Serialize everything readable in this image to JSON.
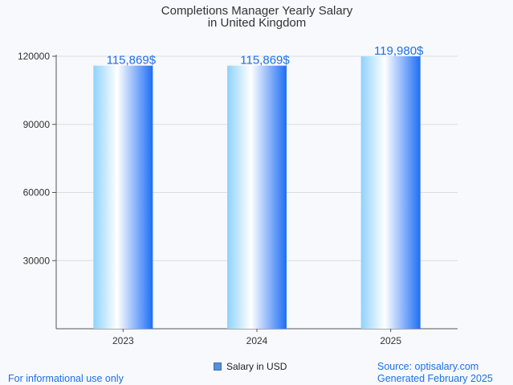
{
  "chart_data": {
    "type": "bar",
    "title_line1": "Completions Manager Yearly Salary",
    "title_line2": "in United Kingdom",
    "categories": [
      "2023",
      "2024",
      "2025"
    ],
    "series": [
      {
        "name": "Salary in USD",
        "values": [
          115869,
          115869,
          119980
        ],
        "labels": [
          "115,869$",
          "115,869$",
          "119,980$"
        ]
      }
    ],
    "ylim": [
      0,
      120000
    ],
    "yticks": [
      30000,
      60000,
      90000,
      120000
    ],
    "grid": true,
    "legend_position": "bottom-center"
  },
  "footer": {
    "left": "For informational use only",
    "source": "Source: optisalary.com",
    "generated": "Generated February 2025"
  },
  "colors": {
    "bar_light": "#dff3ff",
    "bar_mid": "#8fd2fb",
    "bar_dark": "#1e6ef5",
    "label_blue": "#1f6fe0",
    "grid": "#dddddd",
    "axis": "#555555"
  }
}
